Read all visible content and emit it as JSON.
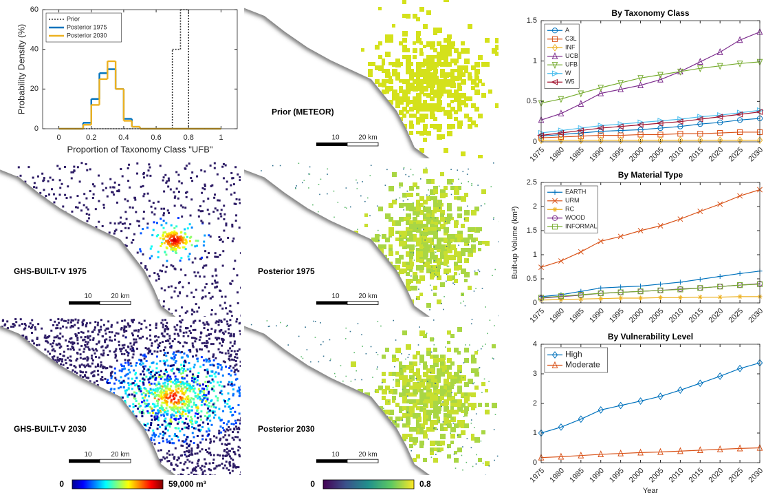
{
  "chart_data": [
    {
      "type": "histogram",
      "xlabel": "Proportion of Taxonomy Class \"UFB\"",
      "ylabel": "Probability Density (%)",
      "bins": [
        0,
        0.05,
        0.1,
        0.15,
        0.2,
        0.25,
        0.3,
        0.35,
        0.4,
        0.45,
        0.5,
        0.55,
        0.6,
        0.65,
        0.7,
        0.75,
        0.8,
        0.85,
        0.9,
        0.95,
        1
      ],
      "series": [
        {
          "name": "Prior",
          "color": "#333333",
          "linestyle": "dotted",
          "values": [
            0,
            0,
            0,
            0,
            0,
            0,
            0,
            0,
            0,
            0,
            0,
            0,
            0,
            0,
            40,
            60,
            0,
            0,
            0,
            0
          ]
        },
        {
          "name": "Posterior 1975",
          "color": "#0072BD",
          "linestyle": "solid",
          "values": [
            0,
            0,
            0,
            3,
            15,
            28,
            30,
            20,
            5,
            1,
            0,
            0,
            0,
            0,
            0,
            0,
            0,
            0,
            0,
            0
          ]
        },
        {
          "name": "Posterior 2030",
          "color": "#EDB120",
          "linestyle": "solid",
          "values": [
            0,
            0,
            0,
            2,
            12,
            25,
            34,
            20,
            4,
            1,
            0,
            0,
            0,
            0,
            0,
            0,
            0,
            0,
            0,
            0
          ]
        }
      ],
      "xlim": [
        -0.1,
        1.1
      ],
      "xticks": [
        0,
        0.2,
        0.4,
        0.6,
        0.8,
        1
      ],
      "ylim": [
        0,
        60
      ],
      "yticks": [
        0,
        20,
        40,
        60
      ],
      "grid": false,
      "legend": "northwest"
    },
    {
      "type": "line",
      "title": "By Taxonomy Class",
      "x": [
        1975,
        1980,
        1985,
        1990,
        1995,
        2000,
        2005,
        2010,
        2015,
        2020,
        2025,
        2030
      ],
      "series": [
        {
          "name": "A",
          "color": "#0072BD",
          "marker": "circle",
          "values": [
            0.07,
            0.09,
            0.11,
            0.13,
            0.14,
            0.15,
            0.17,
            0.19,
            0.22,
            0.24,
            0.27,
            0.29
          ]
        },
        {
          "name": "C3L",
          "color": "#D95319",
          "marker": "square",
          "values": [
            0.05,
            0.06,
            0.07,
            0.08,
            0.08,
            0.09,
            0.09,
            0.1,
            0.1,
            0.11,
            0.12,
            0.12
          ]
        },
        {
          "name": "INF",
          "color": "#EDB120",
          "marker": "diamond",
          "values": [
            0.02,
            0.02,
            0.02,
            0.02,
            0.02,
            0.02,
            0.02,
            0.02,
            0.02,
            0.02,
            0.02,
            0.02
          ]
        },
        {
          "name": "UCB",
          "color": "#7E2F8E",
          "marker": "triangle-up",
          "values": [
            0.27,
            0.35,
            0.47,
            0.6,
            0.65,
            0.7,
            0.77,
            0.87,
            0.99,
            1.11,
            1.26,
            1.36
          ]
        },
        {
          "name": "UFB",
          "color": "#77AC30",
          "marker": "triangle-down",
          "values": [
            0.48,
            0.53,
            0.6,
            0.67,
            0.73,
            0.79,
            0.83,
            0.87,
            0.91,
            0.94,
            0.97,
            0.99
          ]
        },
        {
          "name": "W",
          "color": "#4DBEEE",
          "marker": "triangle-right",
          "values": [
            0.11,
            0.14,
            0.17,
            0.2,
            0.22,
            0.24,
            0.26,
            0.28,
            0.31,
            0.33,
            0.36,
            0.39
          ]
        },
        {
          "name": "W5",
          "color": "#A2142F",
          "marker": "triangle-left",
          "values": [
            0.08,
            0.11,
            0.14,
            0.17,
            0.19,
            0.21,
            0.23,
            0.25,
            0.28,
            0.31,
            0.34,
            0.37
          ]
        }
      ],
      "xlim": [
        1975,
        2030
      ],
      "xticks": [
        1975,
        1980,
        1985,
        1990,
        1995,
        2000,
        2005,
        2010,
        2015,
        2020,
        2025,
        2030
      ],
      "ylim": [
        0,
        1.5
      ],
      "yticks": [
        0,
        0.5,
        1,
        1.5
      ],
      "grid": false,
      "legend": "northwest"
    },
    {
      "type": "line",
      "title": "By Material Type",
      "ylabel": "Built-up Volume (km³)",
      "x": [
        1975,
        1980,
        1985,
        1990,
        1995,
        2000,
        2005,
        2010,
        2015,
        2020,
        2025,
        2030
      ],
      "series": [
        {
          "name": "EARTH",
          "color": "#0072BD",
          "marker": "plus",
          "values": [
            0.13,
            0.17,
            0.24,
            0.31,
            0.33,
            0.35,
            0.39,
            0.43,
            0.49,
            0.55,
            0.61,
            0.66
          ]
        },
        {
          "name": "URM",
          "color": "#D95319",
          "marker": "cross",
          "values": [
            0.74,
            0.87,
            1.06,
            1.28,
            1.38,
            1.5,
            1.6,
            1.74,
            1.9,
            2.05,
            2.22,
            2.35
          ]
        },
        {
          "name": "RC",
          "color": "#EDB120",
          "marker": "star",
          "values": [
            0.06,
            0.07,
            0.08,
            0.09,
            0.1,
            0.1,
            0.11,
            0.11,
            0.12,
            0.12,
            0.13,
            0.13
          ]
        },
        {
          "name": "WOOD",
          "color": "#7E2F8E",
          "marker": "circle",
          "values": [
            0.1,
            0.13,
            0.16,
            0.2,
            0.22,
            0.24,
            0.26,
            0.29,
            0.31,
            0.34,
            0.37,
            0.4
          ]
        },
        {
          "name": "INFORMAL",
          "color": "#77AC30",
          "marker": "square",
          "values": [
            0.11,
            0.14,
            0.17,
            0.2,
            0.22,
            0.24,
            0.26,
            0.28,
            0.31,
            0.34,
            0.37,
            0.39
          ]
        }
      ],
      "xlim": [
        1975,
        2030
      ],
      "xticks": [
        1975,
        1980,
        1985,
        1990,
        1995,
        2000,
        2005,
        2010,
        2015,
        2020,
        2025,
        2030
      ],
      "ylim": [
        0,
        2.5
      ],
      "yticks": [
        0,
        0.5,
        1,
        1.5,
        2,
        2.5
      ],
      "grid": false,
      "legend": "northwest"
    },
    {
      "type": "line",
      "title": "By Vulnerability Level",
      "xlabel": "Year",
      "x": [
        1975,
        1980,
        1985,
        1990,
        1995,
        2000,
        2005,
        2010,
        2015,
        2020,
        2025,
        2030
      ],
      "series": [
        {
          "name": "High",
          "color": "#0072BD",
          "marker": "diamond",
          "values": [
            1.0,
            1.2,
            1.47,
            1.78,
            1.93,
            2.08,
            2.24,
            2.45,
            2.68,
            2.92,
            3.18,
            3.37
          ]
        },
        {
          "name": "Moderate",
          "color": "#D95319",
          "marker": "triangle-up",
          "values": [
            0.17,
            0.2,
            0.24,
            0.28,
            0.31,
            0.34,
            0.36,
            0.39,
            0.42,
            0.45,
            0.48,
            0.5
          ]
        }
      ],
      "xlim": [
        1975,
        2030
      ],
      "xticks": [
        1975,
        1980,
        1985,
        1990,
        1995,
        2000,
        2005,
        2010,
        2015,
        2020,
        2025,
        2030
      ],
      "ylim": [
        0,
        4
      ],
      "yticks": [
        0,
        1,
        2,
        3,
        4
      ],
      "grid": false,
      "legend": "northwest"
    }
  ],
  "maps": [
    {
      "label": "Prior (METEOR)",
      "style": "prior",
      "scale_labels": [
        "10",
        "20 km"
      ]
    },
    {
      "label": "GHS-BUILT-V 1975",
      "style": "built",
      "scale_labels": [
        "10",
        "20 km"
      ]
    },
    {
      "label": "Posterior 1975",
      "style": "posterior",
      "scale_labels": [
        "10",
        "20 km"
      ]
    },
    {
      "label": "GHS-BUILT-V 2030",
      "style": "built",
      "scale_labels": [
        "10",
        "20 km"
      ]
    },
    {
      "label": "Posterior 2030",
      "style": "posterior",
      "scale_labels": [
        "10",
        "20 km"
      ]
    }
  ],
  "colorbars": [
    {
      "min_label": "0",
      "max_label": "59,000 m³",
      "colormap": "jet"
    },
    {
      "min_label": "0",
      "max_label": "0.8",
      "colormap": "viridis"
    }
  ]
}
